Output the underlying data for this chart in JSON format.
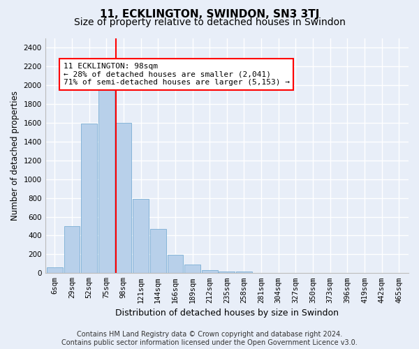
{
  "title": "11, ECKLINGTON, SWINDON, SN3 3TJ",
  "subtitle": "Size of property relative to detached houses in Swindon",
  "xlabel": "Distribution of detached houses by size in Swindon",
  "ylabel": "Number of detached properties",
  "footer_line1": "Contains HM Land Registry data © Crown copyright and database right 2024.",
  "footer_line2": "Contains public sector information licensed under the Open Government Licence v3.0.",
  "categories": [
    "6sqm",
    "29sqm",
    "52sqm",
    "75sqm",
    "98sqm",
    "121sqm",
    "144sqm",
    "166sqm",
    "189sqm",
    "212sqm",
    "235sqm",
    "258sqm",
    "281sqm",
    "304sqm",
    "327sqm",
    "350sqm",
    "373sqm",
    "396sqm",
    "419sqm",
    "442sqm",
    "465sqm"
  ],
  "bar_values": [
    60,
    500,
    1590,
    1960,
    1600,
    790,
    470,
    195,
    90,
    35,
    20,
    15,
    0,
    0,
    0,
    0,
    0,
    0,
    0,
    0,
    0
  ],
  "bar_color": "#b8d0ea",
  "bar_edgecolor": "#7aaed4",
  "red_line_index": 4,
  "annotation_text": "11 ECKLINGTON: 98sqm\n← 28% of detached houses are smaller (2,041)\n71% of semi-detached houses are larger (5,153) →",
  "annotation_box_facecolor": "white",
  "annotation_box_edgecolor": "red",
  "ylim": [
    0,
    2500
  ],
  "yticks": [
    0,
    200,
    400,
    600,
    800,
    1000,
    1200,
    1400,
    1600,
    1800,
    2000,
    2200,
    2400
  ],
  "background_color": "#e8eef8",
  "plot_bg_color": "#e8eef8",
  "grid_color": "white",
  "title_fontsize": 11,
  "subtitle_fontsize": 10,
  "xlabel_fontsize": 9,
  "ylabel_fontsize": 8.5,
  "tick_fontsize": 7.5,
  "annotation_fontsize": 8,
  "footer_fontsize": 7
}
